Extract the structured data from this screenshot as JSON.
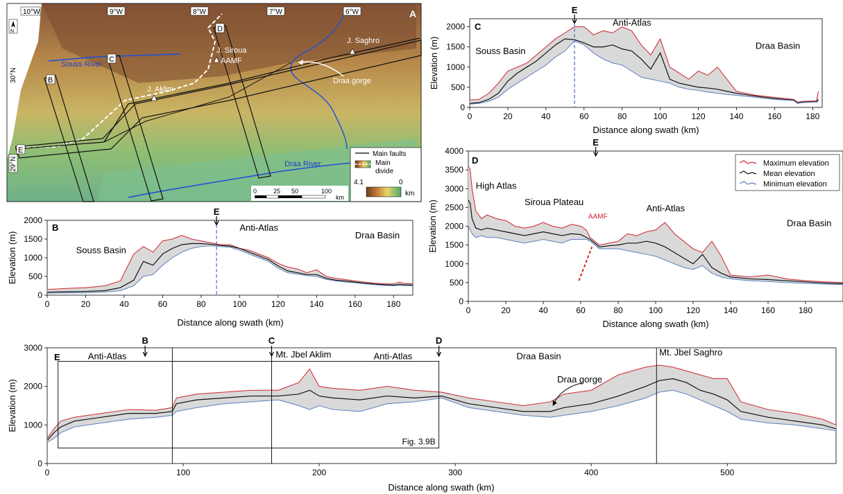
{
  "colors": {
    "max": "#d0242b",
    "mean": "#111111",
    "min": "#5a7fbf",
    "fill": "#d9d9d9",
    "river": "#1e4fd8",
    "divide": "#ffffff",
    "marker_line": "#4a6fc2",
    "aamf": "#d0242b"
  },
  "map": {
    "panel_letter": "A",
    "lon_labels": [
      "10°W",
      "9°W",
      "8°W",
      "7°W",
      "6°W"
    ],
    "lat_labels": [
      "30°N",
      "29°N"
    ],
    "north_label": "N",
    "swath_labels": [
      "B",
      "C",
      "D",
      "E"
    ],
    "rivers": [
      "Souss River",
      "Draa River"
    ],
    "peaks": [
      "J. Siroua",
      "J. Saghro",
      "J. Aklim"
    ],
    "fault_label": "AAMF",
    "gorge_label": "Draa gorge",
    "legend": {
      "faults": "Main faults",
      "divide_line1": "Main",
      "divide_line2": "divide",
      "elev_max": "4.1",
      "elev_min": "0",
      "elev_unit": "km"
    },
    "scale": {
      "ticks": [
        "0",
        "25",
        "50",
        "100"
      ],
      "unit": "km"
    }
  },
  "chart_data": [
    {
      "panel": "B",
      "type": "area",
      "xlabel": "Distance along swath (km)",
      "ylabel": "Elevation (m)",
      "xlim": [
        0,
        190
      ],
      "ylim": [
        0,
        2000
      ],
      "xticks": [
        0,
        20,
        40,
        60,
        80,
        100,
        120,
        140,
        160,
        180
      ],
      "yticks": [
        0,
        500,
        1000,
        1500,
        2000
      ],
      "marker": {
        "label": "E",
        "x": 88
      },
      "annotations": [
        {
          "text": "Souss Basin",
          "x": 15,
          "y": 1120
        },
        {
          "text": "Anti-Atlas",
          "x": 100,
          "y": 1720
        },
        {
          "text": "Draa Basin",
          "x": 160,
          "y": 1520
        }
      ],
      "x": [
        0,
        10,
        20,
        30,
        38,
        45,
        50,
        55,
        60,
        65,
        70,
        75,
        80,
        85,
        90,
        95,
        100,
        105,
        110,
        115,
        120,
        125,
        130,
        135,
        140,
        145,
        150,
        155,
        160,
        165,
        170,
        175,
        180,
        183,
        185,
        190
      ],
      "series": [
        {
          "name": "Maximum elevation",
          "values": [
            150,
            180,
            200,
            250,
            380,
            1100,
            1300,
            1150,
            1450,
            1500,
            1600,
            1500,
            1450,
            1400,
            1350,
            1350,
            1250,
            1200,
            1100,
            1000,
            850,
            750,
            700,
            600,
            680,
            500,
            450,
            420,
            380,
            350,
            320,
            300,
            300,
            350,
            320,
            300
          ]
        },
        {
          "name": "Mean elevation",
          "values": [
            80,
            90,
            100,
            120,
            200,
            400,
            900,
            800,
            1100,
            1250,
            1350,
            1380,
            1380,
            1360,
            1330,
            1310,
            1250,
            1150,
            1050,
            950,
            780,
            650,
            600,
            550,
            550,
            450,
            400,
            380,
            350,
            320,
            300,
            280,
            270,
            290,
            280,
            270
          ]
        },
        {
          "name": "Minimum elevation",
          "values": [
            50,
            60,
            60,
            80,
            120,
            250,
            500,
            550,
            800,
            1000,
            1150,
            1250,
            1300,
            1320,
            1300,
            1280,
            1200,
            1100,
            1000,
            900,
            720,
            600,
            560,
            520,
            500,
            420,
            380,
            350,
            330,
            300,
            280,
            260,
            250,
            260,
            255,
            250
          ]
        }
      ]
    },
    {
      "panel": "C",
      "type": "area",
      "xlabel": "Distance along swath (km)",
      "ylabel": "Elevation (m)",
      "xlim": [
        0,
        185
      ],
      "ylim": [
        0,
        2200
      ],
      "xticks": [
        0,
        20,
        40,
        60,
        80,
        100,
        120,
        140,
        160,
        180
      ],
      "yticks": [
        0,
        500,
        1000,
        1500,
        2000
      ],
      "marker": {
        "label": "E",
        "x": 55
      },
      "annotations": [
        {
          "text": "Souss Basin",
          "x": 3,
          "y": 1320
        },
        {
          "text": "Anti-Atlas",
          "x": 75,
          "y": 2030
        },
        {
          "text": "Draa Basin",
          "x": 150,
          "y": 1450
        }
      ],
      "x": [
        0,
        5,
        10,
        15,
        20,
        25,
        30,
        35,
        40,
        45,
        50,
        55,
        60,
        65,
        70,
        75,
        80,
        85,
        90,
        95,
        100,
        105,
        110,
        115,
        120,
        125,
        130,
        135,
        140,
        150,
        160,
        170,
        172,
        175,
        180,
        182,
        183
      ],
      "series": [
        {
          "name": "Maximum elevation",
          "values": [
            180,
            200,
            350,
            600,
            900,
            1000,
            1100,
            1300,
            1500,
            1700,
            1850,
            2000,
            2000,
            1800,
            1900,
            1850,
            2000,
            1900,
            1550,
            1300,
            1700,
            1000,
            850,
            700,
            900,
            800,
            1000,
            700,
            400,
            300,
            250,
            200,
            130,
            150,
            160,
            160,
            400
          ]
        },
        {
          "name": "Mean elevation",
          "values": [
            100,
            120,
            200,
            350,
            650,
            850,
            1000,
            1150,
            1350,
            1550,
            1700,
            1680,
            1600,
            1500,
            1500,
            1550,
            1450,
            1400,
            1200,
            950,
            1350,
            700,
            600,
            550,
            500,
            480,
            450,
            400,
            350,
            280,
            220,
            180,
            110,
            130,
            140,
            140,
            200
          ]
        },
        {
          "name": "Minimum elevation",
          "values": [
            80,
            100,
            150,
            250,
            450,
            600,
            750,
            900,
            1050,
            1250,
            1400,
            1650,
            1550,
            1350,
            1200,
            1100,
            1050,
            900,
            750,
            700,
            650,
            600,
            500,
            450,
            420,
            380,
            350,
            320,
            300,
            250,
            200,
            170,
            100,
            120,
            130,
            130,
            150
          ]
        }
      ]
    },
    {
      "panel": "D",
      "type": "area",
      "xlabel": "Distance along swath (km)",
      "ylabel": "Elevation (m)",
      "xlim": [
        0,
        200
      ],
      "ylim": [
        0,
        4000
      ],
      "xticks": [
        0,
        20,
        40,
        60,
        80,
        100,
        120,
        140,
        160,
        180
      ],
      "yticks": [
        0,
        500,
        1000,
        1500,
        2000,
        2500,
        3000,
        3500,
        4000
      ],
      "marker": {
        "label": "E",
        "x": 68
      },
      "annotations": [
        {
          "text": "High Atlas",
          "x": 4,
          "y": 3000
        },
        {
          "text": "Siroua Plateau",
          "x": 30,
          "y": 2560
        },
        {
          "text": "Anti-Atlas",
          "x": 95,
          "y": 2400
        },
        {
          "text": "Draa Basin",
          "x": 170,
          "y": 2000
        },
        {
          "text": "AAMF",
          "x": 64,
          "y": 2200
        }
      ],
      "aamf_line": {
        "x": [
          59,
          66
        ],
        "y": [
          550,
          1450
        ]
      },
      "legend": {
        "position": "top-right"
      },
      "x": [
        0,
        1,
        2,
        4,
        7,
        10,
        15,
        20,
        25,
        30,
        35,
        40,
        45,
        50,
        55,
        60,
        63,
        65,
        70,
        75,
        80,
        85,
        90,
        95,
        100,
        105,
        110,
        115,
        120,
        125,
        130,
        135,
        140,
        150,
        160,
        170,
        180,
        190,
        200
      ],
      "series": [
        {
          "name": "Maximum elevation",
          "values": [
            3600,
            3500,
            3000,
            2400,
            2200,
            2300,
            2200,
            2150,
            2000,
            1950,
            2000,
            2100,
            2000,
            1950,
            2050,
            2000,
            1900,
            1700,
            1500,
            1550,
            1600,
            1800,
            1750,
            1850,
            1900,
            2100,
            1800,
            1600,
            1400,
            1300,
            1600,
            1200,
            700,
            650,
            700,
            600,
            550,
            520,
            500
          ]
        },
        {
          "name": "Mean elevation",
          "values": [
            2700,
            2600,
            2200,
            1950,
            1900,
            1950,
            1900,
            1850,
            1800,
            1750,
            1800,
            1850,
            1800,
            1750,
            1800,
            1780,
            1700,
            1650,
            1450,
            1480,
            1500,
            1550,
            1550,
            1600,
            1550,
            1450,
            1300,
            1150,
            1000,
            1250,
            900,
            750,
            650,
            600,
            580,
            550,
            520,
            490,
            470
          ]
        },
        {
          "name": "Minimum elevation",
          "values": [
            2000,
            1900,
            1800,
            1700,
            1750,
            1700,
            1700,
            1650,
            1600,
            1550,
            1600,
            1650,
            1600,
            1550,
            1650,
            1650,
            1650,
            1600,
            1400,
            1400,
            1400,
            1350,
            1300,
            1250,
            1200,
            1100,
            1000,
            900,
            850,
            950,
            750,
            650,
            600,
            550,
            530,
            500,
            480,
            460,
            450
          ]
        }
      ]
    },
    {
      "panel": "E",
      "type": "area",
      "xlabel": "Distance along swath (km)",
      "ylabel": "Elevation (m)",
      "xlim": [
        0,
        580
      ],
      "ylim": [
        0,
        3000
      ],
      "xticks": [
        0,
        100,
        200,
        300,
        400,
        500
      ],
      "yticks": [
        0,
        1000,
        2000,
        3000
      ],
      "swath_markers": [
        {
          "label": "B",
          "x": 72
        },
        {
          "label": "C",
          "x": 165
        },
        {
          "label": "D",
          "x": 288
        }
      ],
      "vlines": [
        92,
        165,
        448
      ],
      "inset": {
        "label": "Fig. 3.9B",
        "x": [
          8,
          288
        ],
        "y": [
          400,
          2650
        ]
      },
      "annotations": [
        {
          "text": "Anti-Atlas",
          "x": 30,
          "y": 2700
        },
        {
          "text": "Mt. Jbel Aklim",
          "x": 168,
          "y": 2750
        },
        {
          "text": "Anti-Atlas",
          "x": 240,
          "y": 2700
        },
        {
          "text": "Draa Basin",
          "x": 345,
          "y": 2700
        },
        {
          "text": "Mt. Jbel Saghro",
          "x": 450,
          "y": 2800
        },
        {
          "text": "Draa gorge",
          "x": 375,
          "y": 2100
        }
      ],
      "x": [
        0,
        5,
        10,
        20,
        40,
        60,
        80,
        92,
        95,
        110,
        130,
        150,
        170,
        185,
        193,
        200,
        210,
        230,
        250,
        270,
        290,
        310,
        330,
        350,
        370,
        380,
        400,
        420,
        440,
        450,
        460,
        470,
        480,
        490,
        500,
        510,
        530,
        550,
        570,
        580
      ],
      "series": [
        {
          "name": "Maximum elevation",
          "values": [
            650,
            900,
            1100,
            1200,
            1300,
            1400,
            1380,
            1450,
            1700,
            1800,
            1850,
            1900,
            1900,
            2100,
            2450,
            2000,
            1950,
            1900,
            2000,
            1900,
            1850,
            1700,
            1600,
            1500,
            1600,
            1800,
            1900,
            2300,
            2500,
            2550,
            2500,
            2400,
            2300,
            2200,
            2200,
            1600,
            1400,
            1300,
            1150,
            1000
          ]
        },
        {
          "name": "Mean elevation",
          "values": [
            600,
            800,
            950,
            1100,
            1200,
            1300,
            1300,
            1350,
            1550,
            1650,
            1700,
            1750,
            1750,
            1800,
            1900,
            1750,
            1700,
            1650,
            1750,
            1700,
            1750,
            1550,
            1450,
            1350,
            1350,
            1450,
            1550,
            1750,
            2000,
            2150,
            2200,
            2100,
            1900,
            1800,
            1650,
            1350,
            1200,
            1100,
            1000,
            900
          ]
        },
        {
          "name": "Minimum elevation",
          "values": [
            550,
            650,
            800,
            950,
            1050,
            1150,
            1200,
            1250,
            1350,
            1450,
            1550,
            1600,
            1650,
            1500,
            1400,
            1500,
            1400,
            1350,
            1550,
            1600,
            1700,
            1450,
            1350,
            1250,
            1200,
            1250,
            1350,
            1500,
            1700,
            1850,
            1900,
            1800,
            1650,
            1500,
            1350,
            1150,
            1050,
            1000,
            900,
            850
          ]
        }
      ]
    }
  ]
}
